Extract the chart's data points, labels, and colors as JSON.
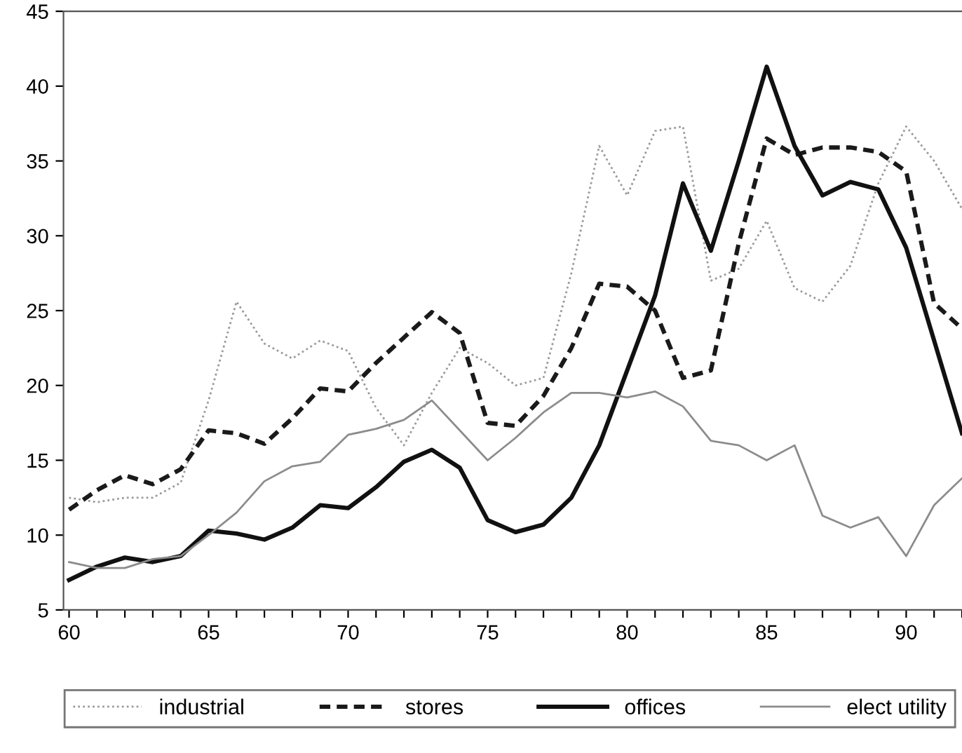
{
  "chart_data": {
    "type": "line",
    "x": [
      60,
      61,
      62,
      63,
      64,
      65,
      66,
      67,
      68,
      69,
      70,
      71,
      72,
      73,
      74,
      75,
      76,
      77,
      78,
      79,
      80,
      81,
      82,
      83,
      84,
      85,
      86,
      87,
      88,
      89,
      90,
      91,
      92
    ],
    "series": [
      {
        "name": "industrial",
        "color": "#9a9a9a",
        "line_style": "dotted",
        "values": [
          12.5,
          12.2,
          12.5,
          12.5,
          13.5,
          19,
          25.6,
          22.8,
          21.8,
          23,
          22.3,
          18.5,
          16,
          19.5,
          22.5,
          21.5,
          20,
          20.5,
          27.5,
          36,
          32.7,
          37,
          37.3,
          27,
          27.8,
          31,
          26.5,
          25.6,
          28,
          33.5,
          37.3,
          35,
          31.8
        ]
      },
      {
        "name": "stores",
        "color": "#1a1a1a",
        "line_style": "dashed",
        "values": [
          11.7,
          13,
          14,
          13.4,
          14.4,
          17,
          16.8,
          16.1,
          17.8,
          19.8,
          19.6,
          21.5,
          23.2,
          24.9,
          23.5,
          17.5,
          17.3,
          19.3,
          22.5,
          26.8,
          26.6,
          25,
          20.5,
          21,
          29.5,
          36.5,
          35.4,
          35.9,
          35.9,
          35.6,
          34.3,
          25.5,
          23.8
        ]
      },
      {
        "name": "offices",
        "color": "#111111",
        "line_style": "solid",
        "values": [
          7,
          7.9,
          8.5,
          8.2,
          8.6,
          10.3,
          10.1,
          9.7,
          10.5,
          12,
          11.8,
          13.2,
          14.9,
          15.7,
          14.5,
          11,
          10.2,
          10.7,
          12.5,
          16,
          21,
          26,
          33.5,
          29,
          35,
          41.3,
          36,
          32.7,
          33.6,
          33.1,
          29.2,
          23,
          16.8
        ]
      },
      {
        "name": "elect utility",
        "color": "#8c8c8c",
        "line_style": "solid",
        "values": [
          8.2,
          7.8,
          7.8,
          8.4,
          8.6,
          10,
          11.5,
          13.6,
          14.6,
          14.9,
          16.7,
          17.1,
          17.7,
          19,
          17,
          15,
          16.5,
          18.2,
          19.5,
          19.5,
          19.2,
          19.6,
          18.6,
          16.3,
          16,
          15,
          16,
          11.3,
          10.5,
          11.2,
          8.6,
          12,
          13.8
        ]
      }
    ],
    "xlim": [
      59.8,
      92
    ],
    "xticks": [
      60,
      {
        "value": 61,
        "label": null
      },
      {
        "value": 62,
        "label": null
      },
      {
        "value": 63,
        "label": null
      },
      {
        "value": 64,
        "label": null
      },
      65,
      {
        "value": 66,
        "label": null
      },
      {
        "value": 67,
        "label": null
      },
      {
        "value": 68,
        "label": null
      },
      {
        "value": 69,
        "label": null
      },
      70,
      {
        "value": 71,
        "label": null
      },
      {
        "value": 72,
        "label": null
      },
      {
        "value": 73,
        "label": null
      },
      {
        "value": 74,
        "label": null
      },
      75,
      {
        "value": 76,
        "label": null
      },
      {
        "value": 77,
        "label": null
      },
      {
        "value": 78,
        "label": null
      },
      {
        "value": 79,
        "label": null
      },
      80,
      {
        "value": 81,
        "label": null
      },
      {
        "value": 82,
        "label": null
      },
      {
        "value": 83,
        "label": null
      },
      {
        "value": 84,
        "label": null
      },
      85,
      {
        "value": 86,
        "label": null
      },
      {
        "value": 87,
        "label": null
      },
      {
        "value": 88,
        "label": null
      },
      {
        "value": 89,
        "label": null
      },
      90,
      {
        "value": 91,
        "label": null
      },
      {
        "value": 92,
        "label": null
      }
    ],
    "ylim": [
      5,
      45
    ],
    "yticks": [
      5,
      10,
      15,
      20,
      25,
      30,
      35,
      40,
      45
    ],
    "grid": false,
    "legend": "bottom",
    "marker": "none"
  }
}
